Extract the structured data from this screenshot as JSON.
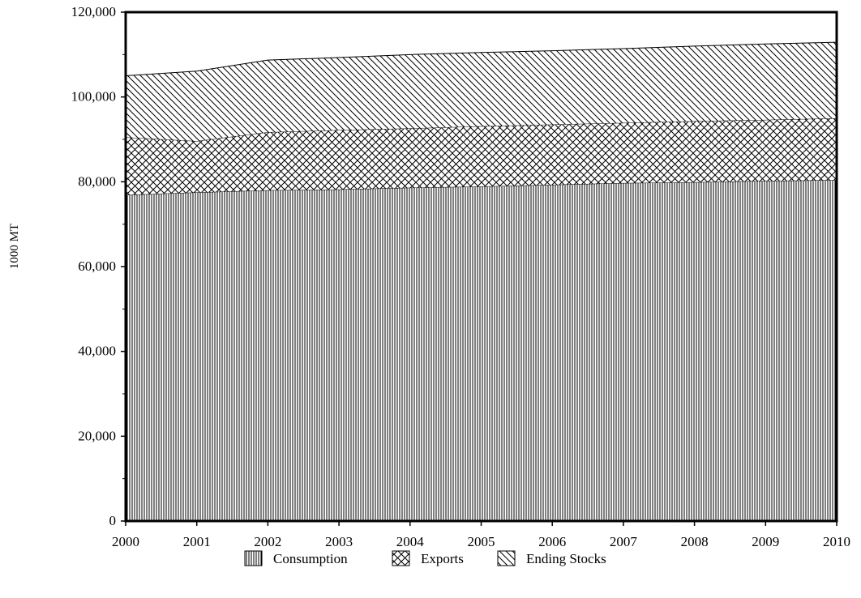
{
  "chart_data": {
    "type": "area",
    "stacked": true,
    "title": "",
    "xlabel": "",
    "ylabel": "1000 MT",
    "x": [
      2000,
      2001,
      2002,
      2003,
      2004,
      2005,
      2006,
      2007,
      2008,
      2009,
      2010
    ],
    "x_tick_labels": [
      "2000",
      "2001",
      "2002",
      "2003",
      "2004",
      "2005",
      "2006",
      "2007",
      "2008",
      "2009",
      "2010"
    ],
    "ylim": [
      0,
      120000
    ],
    "y_ticks": [
      0,
      20000,
      40000,
      60000,
      80000,
      100000,
      120000
    ],
    "y_tick_labels": [
      "0",
      "20,000",
      "40,000",
      "60,000",
      "80,000",
      "100,000",
      "120,000"
    ],
    "grid": "horizontal",
    "legend_position": "bottom-center",
    "series": [
      {
        "name": "Consumption",
        "pattern": "vertical-lines",
        "values": [
          76900,
          77500,
          78000,
          78200,
          78600,
          78900,
          79300,
          79700,
          79900,
          80200,
          80400
        ]
      },
      {
        "name": "Exports",
        "pattern": "crosshatch",
        "values": [
          13600,
          12100,
          13700,
          14000,
          14000,
          14200,
          14200,
          14200,
          14400,
          14400,
          14600
        ]
      },
      {
        "name": "Ending Stocks",
        "pattern": "diagonal-lines",
        "values": [
          14500,
          16500,
          17000,
          17100,
          17400,
          17400,
          17400,
          17500,
          17700,
          17900,
          17900
        ]
      }
    ],
    "colors": {
      "line": "#000000",
      "grid": "#999999",
      "background": "#ffffff"
    }
  }
}
